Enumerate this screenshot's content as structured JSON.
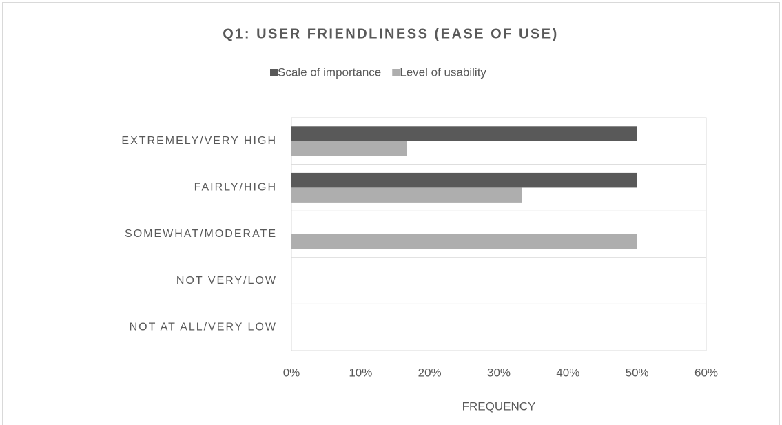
{
  "chart_data": {
    "type": "bar",
    "orientation": "horizontal",
    "title": "Q1: USER FRIENDLINESS (EASE OF USE)",
    "categories": [
      "EXTREMELY/VERY HIGH",
      "FAIRLY/HIGH",
      "SOMEWHAT/MODERATE",
      "NOT VERY/LOW",
      "NOT AT ALL/VERY LOW"
    ],
    "series": [
      {
        "name": "Scale of importance",
        "color": "#595959",
        "values": [
          50,
          50,
          0,
          0,
          0
        ]
      },
      {
        "name": "Level of usability",
        "color": "#aeaeae",
        "values": [
          16.7,
          33.3,
          50,
          0,
          0
        ]
      }
    ],
    "xlabel": "FREQUENCY",
    "xlim": [
      0,
      60
    ],
    "xticks": [
      {
        "value": 0,
        "label": "0%"
      },
      {
        "value": 10,
        "label": "10%"
      },
      {
        "value": 20,
        "label": "20%"
      },
      {
        "value": 30,
        "label": "30%"
      },
      {
        "value": 40,
        "label": "40%"
      },
      {
        "value": 50,
        "label": "50%"
      },
      {
        "value": 60,
        "label": "60%"
      }
    ],
    "legend": "top"
  }
}
